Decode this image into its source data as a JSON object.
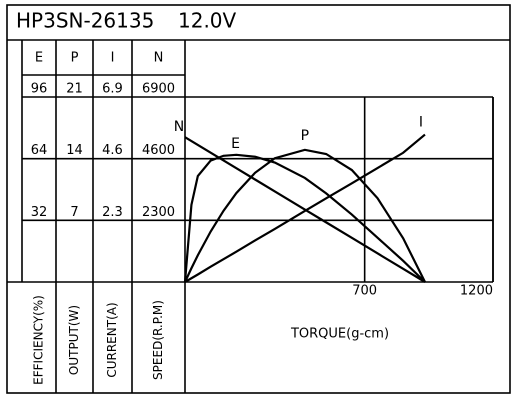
{
  "chart_data": {
    "type": "line",
    "title": "HP3SN-26135",
    "subtitle": "12.0V",
    "xlabel": "TORQUE(g-cm)",
    "xlim": [
      0,
      1200
    ],
    "xticks": [
      700,
      1200
    ],
    "x": [
      0,
      25,
      50,
      100,
      150,
      200,
      273,
      350,
      467,
      550,
      650,
      750,
      850,
      935
    ],
    "axes": [
      {
        "header": "E",
        "label": "EFFICIENCY(%)",
        "ylim": [
          0,
          96
        ],
        "yticks": [
          32,
          64,
          96
        ]
      },
      {
        "header": "P",
        "label": "OUTPUT(W)",
        "ylim": [
          0,
          21
        ],
        "yticks": [
          7,
          14,
          21
        ]
      },
      {
        "header": "I",
        "label": "CURRENT(A)",
        "ylim": [
          0,
          6.9
        ],
        "yticks": [
          2.3,
          4.6,
          6.9
        ]
      },
      {
        "header": "N",
        "label": "SPEED(R.P.M)",
        "ylim": [
          0,
          6900
        ],
        "yticks": [
          2300,
          4600,
          6900
        ]
      }
    ],
    "series": [
      {
        "name": "N",
        "axis": 3,
        "color": "#000000",
        "values": [
          5400,
          5256,
          5111,
          4822,
          4534,
          4245,
          3823,
          3379,
          2703,
          2224,
          1646,
          1068,
          491,
          0
        ]
      },
      {
        "name": "E",
        "axis": 0,
        "color": "#000000",
        "values": [
          0,
          40,
          55,
          63,
          65.5,
          66,
          65,
          62,
          54,
          46,
          35,
          23,
          11,
          0
        ]
      },
      {
        "name": "P",
        "axis": 1,
        "color": "#000000",
        "values": [
          0,
          1.56,
          3.04,
          5.73,
          8.08,
          10.09,
          12.4,
          14.05,
          15,
          14.53,
          12.71,
          9.52,
          4.96,
          0
        ]
      },
      {
        "name": "I",
        "axis": 2,
        "color": "#000000",
        "values": [
          0,
          0.14,
          0.28,
          0.57,
          0.85,
          1.13,
          1.55,
          1.98,
          2.65,
          3.12,
          3.68,
          4.25,
          4.82,
          5.5
        ]
      }
    ]
  }
}
